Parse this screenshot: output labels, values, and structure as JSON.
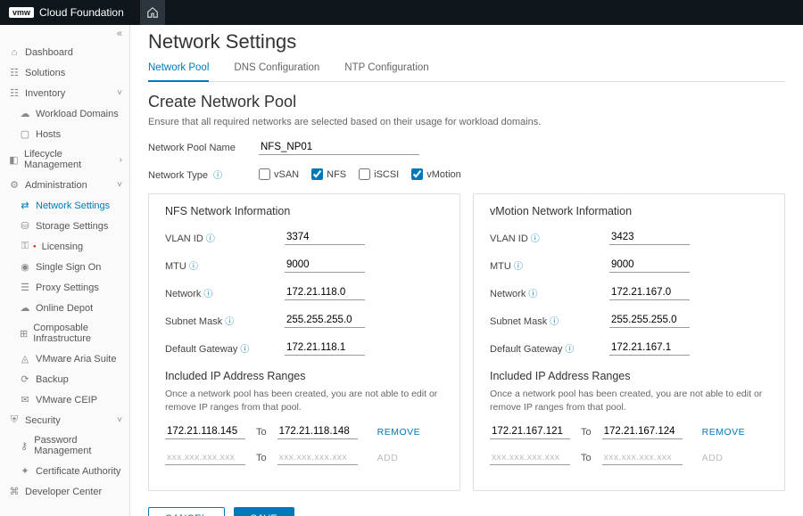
{
  "topbar": {
    "vmw": "vmw",
    "product": "Cloud Foundation"
  },
  "sidebar": {
    "collapse_glyph": "«",
    "items": [
      {
        "icon": "⌂",
        "label": "Dashboard"
      },
      {
        "icon": "☷",
        "label": "Solutions"
      },
      {
        "icon": "☷",
        "label": "Inventory",
        "expandable": true,
        "open": true,
        "chev": "˅"
      },
      {
        "icon": "☁",
        "label": "Workload Domains",
        "sub": true
      },
      {
        "icon": "▢",
        "label": "Hosts",
        "sub": true
      },
      {
        "icon": "◧",
        "label": "Lifecycle Management",
        "expandable": true,
        "chev": "›"
      },
      {
        "icon": "⚙",
        "label": "Administration",
        "expandable": true,
        "open": true,
        "chev": "˅"
      },
      {
        "icon": "⇄",
        "label": "Network Settings",
        "sub": true,
        "active": true
      },
      {
        "icon": "⛁",
        "label": "Storage Settings",
        "sub": true
      },
      {
        "icon": "⚿",
        "label": "Licensing",
        "sub": true,
        "flag": true
      },
      {
        "icon": "◉",
        "label": "Single Sign On",
        "sub": true
      },
      {
        "icon": "☰",
        "label": "Proxy Settings",
        "sub": true
      },
      {
        "icon": "☁",
        "label": "Online Depot",
        "sub": true
      },
      {
        "icon": "⊞",
        "label": "Composable Infrastructure",
        "sub": true
      },
      {
        "icon": "◬",
        "label": "VMware Aria Suite",
        "sub": true
      },
      {
        "icon": "⟳",
        "label": "Backup",
        "sub": true
      },
      {
        "icon": "✉",
        "label": "VMware CEIP",
        "sub": true
      },
      {
        "icon": "⛨",
        "label": "Security",
        "expandable": true,
        "open": true,
        "chev": "˅"
      },
      {
        "icon": "⚷",
        "label": "Password Management",
        "sub": true
      },
      {
        "icon": "✦",
        "label": "Certificate Authority",
        "sub": true
      },
      {
        "icon": "⌘",
        "label": "Developer Center"
      }
    ]
  },
  "page": {
    "title": "Network Settings",
    "tabs": [
      {
        "label": "Network Pool",
        "active": true
      },
      {
        "label": "DNS Configuration"
      },
      {
        "label": "NTP Configuration"
      }
    ],
    "section_title": "Create Network Pool",
    "helper": "Ensure that all required networks are selected based on their usage for workload domains.",
    "pool_name_label": "Network Pool Name",
    "pool_name_value": "NFS_NP01",
    "network_type_label": "Network Type",
    "types": [
      {
        "label": "vSAN",
        "checked": false
      },
      {
        "label": "NFS",
        "checked": true
      },
      {
        "label": "iSCSI",
        "checked": false
      },
      {
        "label": "vMotion",
        "checked": true
      }
    ],
    "panels": [
      {
        "title": "NFS Network Information",
        "fields": [
          {
            "label": "VLAN ID",
            "value": "3374",
            "info": true
          },
          {
            "label": "MTU",
            "value": "9000",
            "info": true
          },
          {
            "label": "Network",
            "value": "172.21.118.0",
            "info": true
          },
          {
            "label": "Subnet Mask",
            "value": "255.255.255.0",
            "info": true
          },
          {
            "label": "Default Gateway",
            "value": "172.21.118.1",
            "info": true
          }
        ],
        "ip_title": "Included IP Address Ranges",
        "ip_help": "Once a network pool has been created, you are not able to edit or remove IP ranges from that pool.",
        "ranges": [
          {
            "from": "172.21.118.145",
            "to": "172.21.118.148",
            "action": "REMOVE"
          },
          {
            "from": "",
            "to": "",
            "placeholder": "xxx.xxx.xxx.xxx",
            "action": "ADD",
            "muted": true
          }
        ]
      },
      {
        "title": "vMotion Network Information",
        "fields": [
          {
            "label": "VLAN ID",
            "value": "3423",
            "info": true
          },
          {
            "label": "MTU",
            "value": "9000",
            "info": true
          },
          {
            "label": "Network",
            "value": "172.21.167.0",
            "info": true
          },
          {
            "label": "Subnet Mask",
            "value": "255.255.255.0",
            "info": true
          },
          {
            "label": "Default Gateway",
            "value": "172.21.167.1",
            "info": true
          }
        ],
        "ip_title": "Included IP Address Ranges",
        "ip_help": "Once a network pool has been created, you are not able to edit or remove IP ranges from that pool.",
        "ranges": [
          {
            "from": "172.21.167.121",
            "to": "172.21.167.124",
            "action": "REMOVE"
          },
          {
            "from": "",
            "to": "",
            "placeholder": "xxx.xxx.xxx.xxx",
            "action": "ADD",
            "muted": true
          }
        ]
      }
    ],
    "to_label": "To",
    "cancel": "CANCEL",
    "save": "SAVE"
  }
}
